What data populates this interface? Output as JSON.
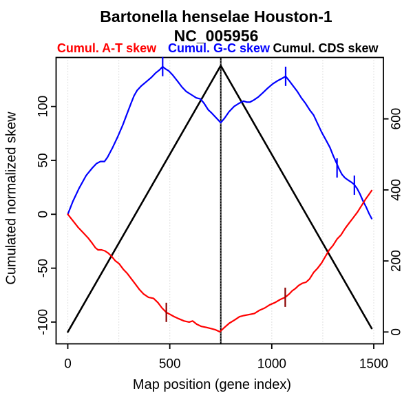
{
  "figure": {
    "title": "Bartonella henselae Houston-1",
    "subtitle": "NC_005956",
    "y_axis_title": "Cumulated normalized skew",
    "x_axis_title": "Map position (gene index)",
    "legend": [
      {
        "label": "Cumul. A-T skew",
        "color": "#ff0000"
      },
      {
        "label": "Cumul. G-C skew",
        "color": "#0000ff"
      },
      {
        "label": "Cumul. CDS skew",
        "color": "#000000"
      }
    ]
  },
  "chart_data": {
    "type": "line",
    "title": "Bartonella henselae Houston-1",
    "subtitle": "NC_005956",
    "xlabel": "Map position (gene index)",
    "ylabel_left": "Cumulated normalized skew",
    "ylabel_right": "",
    "x_ticks": [
      0,
      500,
      1000,
      1500
    ],
    "x_gridlines": [
      0,
      250,
      500,
      750,
      1000,
      1250,
      1500
    ],
    "left_y_ticks": [
      -100,
      -50,
      0,
      50,
      100
    ],
    "right_y_ticks": [
      0,
      200,
      400,
      600
    ],
    "xlim": [
      0,
      1490
    ],
    "left_ylim": [
      -110,
      137
    ],
    "right_ylim": [
      0,
      750
    ],
    "grid_on": true,
    "grid_color": "#cccccc",
    "vline_x": 750,
    "legend_position": "top",
    "series": [
      {
        "name": "Cumul. CDS skew",
        "color": "#000000",
        "axis": "right",
        "width": 2.6,
        "points": [
          [
            0,
            0
          ],
          [
            750,
            750
          ],
          [
            1490,
            10
          ]
        ]
      },
      {
        "name": "Cumul. G-C skew",
        "color": "#0000ff",
        "axis": "left",
        "width": 2.2,
        "points": [
          [
            0,
            0
          ],
          [
            25,
            12
          ],
          [
            55,
            24
          ],
          [
            90,
            36
          ],
          [
            120,
            43
          ],
          [
            140,
            47
          ],
          [
            160,
            49
          ],
          [
            180,
            49
          ],
          [
            195,
            53
          ],
          [
            220,
            62
          ],
          [
            245,
            72
          ],
          [
            270,
            83
          ],
          [
            290,
            93
          ],
          [
            310,
            103
          ],
          [
            325,
            110
          ],
          [
            340,
            115
          ],
          [
            360,
            119
          ],
          [
            385,
            123
          ],
          [
            410,
            127
          ],
          [
            430,
            131
          ],
          [
            450,
            134
          ],
          [
            465,
            137
          ],
          [
            478,
            135
          ],
          [
            495,
            133
          ],
          [
            515,
            129
          ],
          [
            540,
            123
          ],
          [
            560,
            118
          ],
          [
            580,
            114
          ],
          [
            605,
            111
          ],
          [
            630,
            108
          ],
          [
            650,
            107
          ],
          [
            668,
            103
          ],
          [
            688,
            97
          ],
          [
            705,
            94
          ],
          [
            725,
            90
          ],
          [
            750,
            85
          ],
          [
            768,
            89
          ],
          [
            790,
            95
          ],
          [
            815,
            100
          ],
          [
            840,
            103
          ],
          [
            862,
            105
          ],
          [
            878,
            104
          ],
          [
            893,
            104
          ],
          [
            912,
            106
          ],
          [
            935,
            109
          ],
          [
            958,
            113
          ],
          [
            980,
            117
          ],
          [
            1005,
            121
          ],
          [
            1030,
            124
          ],
          [
            1050,
            126
          ],
          [
            1068,
            128
          ],
          [
            1085,
            124
          ],
          [
            1105,
            119
          ],
          [
            1125,
            114
          ],
          [
            1145,
            108
          ],
          [
            1165,
            103
          ],
          [
            1185,
            97
          ],
          [
            1205,
            92
          ],
          [
            1225,
            84
          ],
          [
            1245,
            76
          ],
          [
            1265,
            69
          ],
          [
            1285,
            62
          ],
          [
            1302,
            54
          ],
          [
            1316,
            48
          ],
          [
            1330,
            42
          ],
          [
            1344,
            37
          ],
          [
            1358,
            34
          ],
          [
            1372,
            32
          ],
          [
            1388,
            30
          ],
          [
            1402,
            28
          ],
          [
            1418,
            24
          ],
          [
            1432,
            19
          ],
          [
            1448,
            12
          ],
          [
            1462,
            7
          ],
          [
            1476,
            1
          ],
          [
            1490,
            -4
          ]
        ]
      },
      {
        "name": "Cumul. A-T skew",
        "color": "#ff0000",
        "axis": "left",
        "width": 2.2,
        "points": [
          [
            0,
            0
          ],
          [
            25,
            -6
          ],
          [
            50,
            -12
          ],
          [
            75,
            -17
          ],
          [
            100,
            -22
          ],
          [
            120,
            -27
          ],
          [
            135,
            -31
          ],
          [
            148,
            -33
          ],
          [
            165,
            -33
          ],
          [
            182,
            -34
          ],
          [
            198,
            -36
          ],
          [
            215,
            -39
          ],
          [
            232,
            -43
          ],
          [
            252,
            -46
          ],
          [
            272,
            -51
          ],
          [
            292,
            -55
          ],
          [
            312,
            -60
          ],
          [
            332,
            -65
          ],
          [
            352,
            -70
          ],
          [
            372,
            -74
          ],
          [
            395,
            -77
          ],
          [
            420,
            -78
          ],
          [
            442,
            -82
          ],
          [
            462,
            -87
          ],
          [
            483,
            -91
          ],
          [
            502,
            -93
          ],
          [
            522,
            -95
          ],
          [
            545,
            -97
          ],
          [
            570,
            -99
          ],
          [
            595,
            -100
          ],
          [
            612,
            -99
          ],
          [
            632,
            -102
          ],
          [
            655,
            -104
          ],
          [
            680,
            -105
          ],
          [
            702,
            -106
          ],
          [
            722,
            -107
          ],
          [
            745,
            -109
          ],
          [
            768,
            -105
          ],
          [
            792,
            -101
          ],
          [
            818,
            -98
          ],
          [
            842,
            -95
          ],
          [
            862,
            -94
          ],
          [
            890,
            -93
          ],
          [
            915,
            -92
          ],
          [
            940,
            -89
          ],
          [
            965,
            -87
          ],
          [
            990,
            -84
          ],
          [
            1015,
            -82
          ],
          [
            1042,
            -79
          ],
          [
            1066,
            -77
          ],
          [
            1085,
            -74
          ],
          [
            1100,
            -71
          ],
          [
            1115,
            -69
          ],
          [
            1132,
            -66
          ],
          [
            1150,
            -64
          ],
          [
            1168,
            -63
          ],
          [
            1185,
            -60
          ],
          [
            1205,
            -54
          ],
          [
            1225,
            -50
          ],
          [
            1245,
            -45
          ],
          [
            1263,
            -39
          ],
          [
            1282,
            -33
          ],
          [
            1300,
            -29
          ],
          [
            1320,
            -23
          ],
          [
            1340,
            -19
          ],
          [
            1360,
            -13
          ],
          [
            1380,
            -8
          ],
          [
            1400,
            -3
          ],
          [
            1420,
            2
          ],
          [
            1440,
            8
          ],
          [
            1460,
            14
          ],
          [
            1475,
            18
          ],
          [
            1490,
            22
          ]
        ]
      }
    ],
    "curve_markers": [
      {
        "series": "Cumul. G-C skew",
        "gene": 465,
        "value": 137,
        "color": "#0000ff"
      },
      {
        "series": "Cumul. G-C skew",
        "gene": 1068,
        "value": 128,
        "color": "#0000ff"
      },
      {
        "series": "Cumul. G-C skew",
        "gene": 1320,
        "value": 43,
        "color": "#0000ff"
      },
      {
        "series": "Cumul. G-C skew",
        "gene": 1405,
        "value": 27,
        "color": "#0000ff"
      },
      {
        "series": "Cumul. A-T skew",
        "gene": 483,
        "value": -91,
        "color": "#8b0000"
      },
      {
        "series": "Cumul. A-T skew",
        "gene": 1066,
        "value": -77,
        "color": "#8b0000"
      }
    ]
  }
}
